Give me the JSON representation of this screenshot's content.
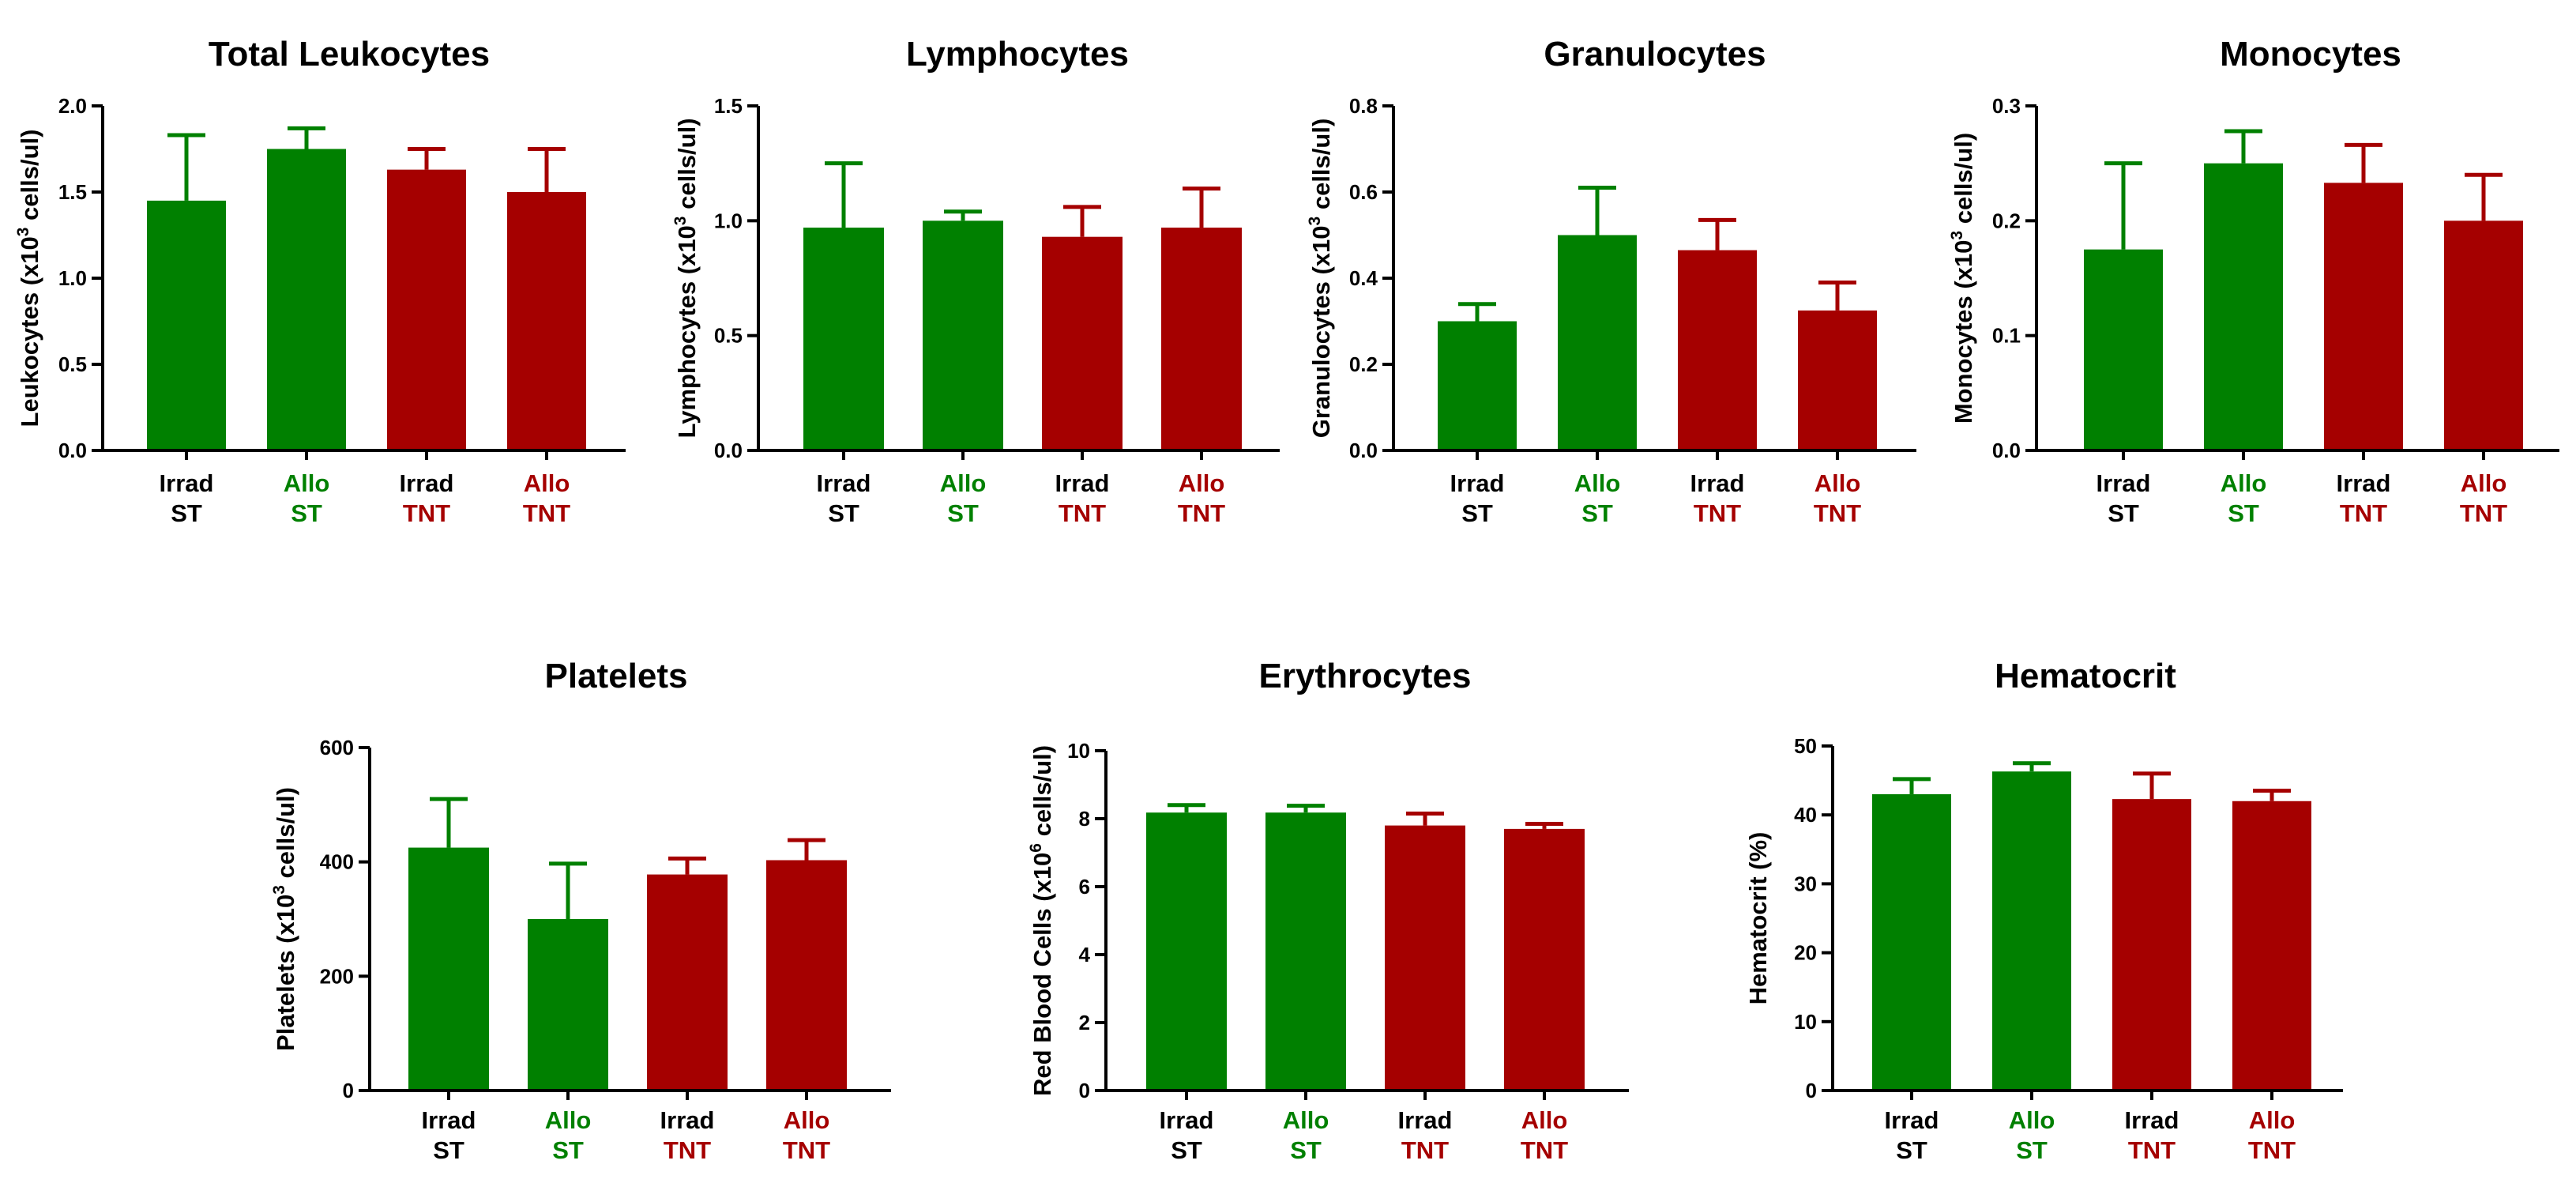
{
  "colors": {
    "green": "#008000",
    "red": "#a50000",
    "black": "#000000"
  },
  "chart_data": [
    {
      "type": "bar",
      "title": "Total Leukocytes",
      "ylabel_parts": [
        "Leukocytes (x10",
        "3",
        " cells/ul)"
      ],
      "ylim": [
        0,
        2.0
      ],
      "ticks": [
        "0.0",
        "0.5",
        "1.0",
        "1.5",
        "2.0"
      ],
      "tick_values": [
        0,
        0.5,
        1.0,
        1.5,
        2.0
      ],
      "categories": [
        {
          "line1": "Irrad",
          "line2": "ST",
          "c1": "black",
          "c2": "black"
        },
        {
          "line1": "Allo",
          "line2": "ST",
          "c1": "green",
          "c2": "green"
        },
        {
          "line1": "Irrad",
          "line2": "TNT",
          "c1": "black",
          "c2": "red"
        },
        {
          "line1": "Allo",
          "line2": "TNT",
          "c1": "red",
          "c2": "red"
        }
      ],
      "values": [
        1.45,
        1.75,
        1.63,
        1.5
      ],
      "errors": [
        0.38,
        0.12,
        0.12,
        0.25
      ],
      "bar_colors": [
        "green",
        "green",
        "red",
        "red"
      ]
    },
    {
      "type": "bar",
      "title": "Lymphocytes",
      "ylabel_parts": [
        "Lymphocytes (x10",
        "3",
        " cells/ul)"
      ],
      "ylim": [
        0,
        1.5
      ],
      "ticks": [
        "0.0",
        "0.5",
        "1.0",
        "1.5"
      ],
      "tick_values": [
        0,
        0.5,
        1.0,
        1.5
      ],
      "categories": [
        {
          "line1": "Irrad",
          "line2": "ST",
          "c1": "black",
          "c2": "black"
        },
        {
          "line1": "Allo",
          "line2": "ST",
          "c1": "green",
          "c2": "green"
        },
        {
          "line1": "Irrad",
          "line2": "TNT",
          "c1": "black",
          "c2": "red"
        },
        {
          "line1": "Allo",
          "line2": "TNT",
          "c1": "red",
          "c2": "red"
        }
      ],
      "values": [
        0.97,
        1.0,
        0.93,
        0.97
      ],
      "errors": [
        0.28,
        0.04,
        0.13,
        0.17
      ],
      "bar_colors": [
        "green",
        "green",
        "red",
        "red"
      ]
    },
    {
      "type": "bar",
      "title": "Granulocytes",
      "ylabel_parts": [
        "Granulocytes (x10",
        "3",
        " cells/ul)"
      ],
      "ylim": [
        0,
        0.8
      ],
      "ticks": [
        "0.0",
        "0.2",
        "0.4",
        "0.6",
        "0.8"
      ],
      "tick_values": [
        0,
        0.2,
        0.4,
        0.6,
        0.8
      ],
      "categories": [
        {
          "line1": "Irrad",
          "line2": "ST",
          "c1": "black",
          "c2": "black"
        },
        {
          "line1": "Allo",
          "line2": "ST",
          "c1": "green",
          "c2": "green"
        },
        {
          "line1": "Irrad",
          "line2": "TNT",
          "c1": "black",
          "c2": "red"
        },
        {
          "line1": "Allo",
          "line2": "TNT",
          "c1": "red",
          "c2": "red"
        }
      ],
      "values": [
        0.3,
        0.5,
        0.465,
        0.325
      ],
      "errors": [
        0.04,
        0.11,
        0.07,
        0.065
      ],
      "bar_colors": [
        "green",
        "green",
        "red",
        "red"
      ]
    },
    {
      "type": "bar",
      "title": "Monocytes",
      "ylabel_parts": [
        "Monocytes (x10",
        "3",
        " cells/ul)"
      ],
      "ylim": [
        0,
        0.3
      ],
      "ticks": [
        "0.0",
        "0.1",
        "0.2",
        "0.3"
      ],
      "tick_values": [
        0,
        0.1,
        0.2,
        0.3
      ],
      "categories": [
        {
          "line1": "Irrad",
          "line2": "ST",
          "c1": "black",
          "c2": "black"
        },
        {
          "line1": "Allo",
          "line2": "ST",
          "c1": "green",
          "c2": "green"
        },
        {
          "line1": "Irrad",
          "line2": "TNT",
          "c1": "black",
          "c2": "red"
        },
        {
          "line1": "Allo",
          "line2": "TNT",
          "c1": "red",
          "c2": "red"
        }
      ],
      "values": [
        0.175,
        0.25,
        0.233,
        0.2
      ],
      "errors": [
        0.075,
        0.028,
        0.033,
        0.04
      ],
      "bar_colors": [
        "green",
        "green",
        "red",
        "red"
      ]
    },
    {
      "type": "bar",
      "title": "Platelets",
      "ylabel_parts": [
        "Platelets (x10",
        "3",
        " cells/ul)"
      ],
      "ylim": [
        0,
        600
      ],
      "ticks": [
        "0",
        "200",
        "400",
        "600"
      ],
      "tick_values": [
        0,
        200,
        400,
        600
      ],
      "categories": [
        {
          "line1": "Irrad",
          "line2": "ST",
          "c1": "black",
          "c2": "black"
        },
        {
          "line1": "Allo",
          "line2": "ST",
          "c1": "green",
          "c2": "green"
        },
        {
          "line1": "Irrad",
          "line2": "TNT",
          "c1": "black",
          "c2": "red"
        },
        {
          "line1": "Allo",
          "line2": "TNT",
          "c1": "red",
          "c2": "red"
        }
      ],
      "values": [
        425,
        300,
        378,
        403
      ],
      "errors": [
        85,
        97,
        28,
        35
      ],
      "bar_colors": [
        "green",
        "green",
        "red",
        "red"
      ]
    },
    {
      "type": "bar",
      "title": "Erythrocytes",
      "ylabel_parts": [
        "Red Blood Cells (x10",
        "6",
        " cells/ul)"
      ],
      "ylim": [
        0,
        10
      ],
      "ticks": [
        "0",
        "2",
        "4",
        "6",
        "8",
        "10"
      ],
      "tick_values": [
        0,
        2,
        4,
        6,
        8,
        10
      ],
      "categories": [
        {
          "line1": "Irrad",
          "line2": "ST",
          "c1": "black",
          "c2": "black"
        },
        {
          "line1": "Allo",
          "line2": "ST",
          "c1": "green",
          "c2": "green"
        },
        {
          "line1": "Irrad",
          "line2": "TNT",
          "c1": "black",
          "c2": "red"
        },
        {
          "line1": "Allo",
          "line2": "TNT",
          "c1": "red",
          "c2": "red"
        }
      ],
      "values": [
        8.18,
        8.18,
        7.8,
        7.7
      ],
      "errors": [
        0.22,
        0.2,
        0.35,
        0.15
      ],
      "bar_colors": [
        "green",
        "green",
        "red",
        "red"
      ]
    },
    {
      "type": "bar",
      "title": "Hematocrit",
      "ylabel_parts": [
        "Hematocrit (%)",
        "",
        ""
      ],
      "ylim": [
        0,
        50
      ],
      "ticks": [
        "0",
        "10",
        "20",
        "30",
        "40",
        "50"
      ],
      "tick_values": [
        0,
        10,
        20,
        30,
        40,
        50
      ],
      "categories": [
        {
          "line1": "Irrad",
          "line2": "ST",
          "c1": "black",
          "c2": "black"
        },
        {
          "line1": "Allo",
          "line2": "ST",
          "c1": "green",
          "c2": "green"
        },
        {
          "line1": "Irrad",
          "line2": "TNT",
          "c1": "black",
          "c2": "red"
        },
        {
          "line1": "Allo",
          "line2": "TNT",
          "c1": "red",
          "c2": "red"
        }
      ],
      "values": [
        43,
        46.3,
        42.3,
        42
      ],
      "errors": [
        2.2,
        1.2,
        3.7,
        1.5
      ],
      "bar_colors": [
        "green",
        "green",
        "red",
        "red"
      ]
    }
  ]
}
